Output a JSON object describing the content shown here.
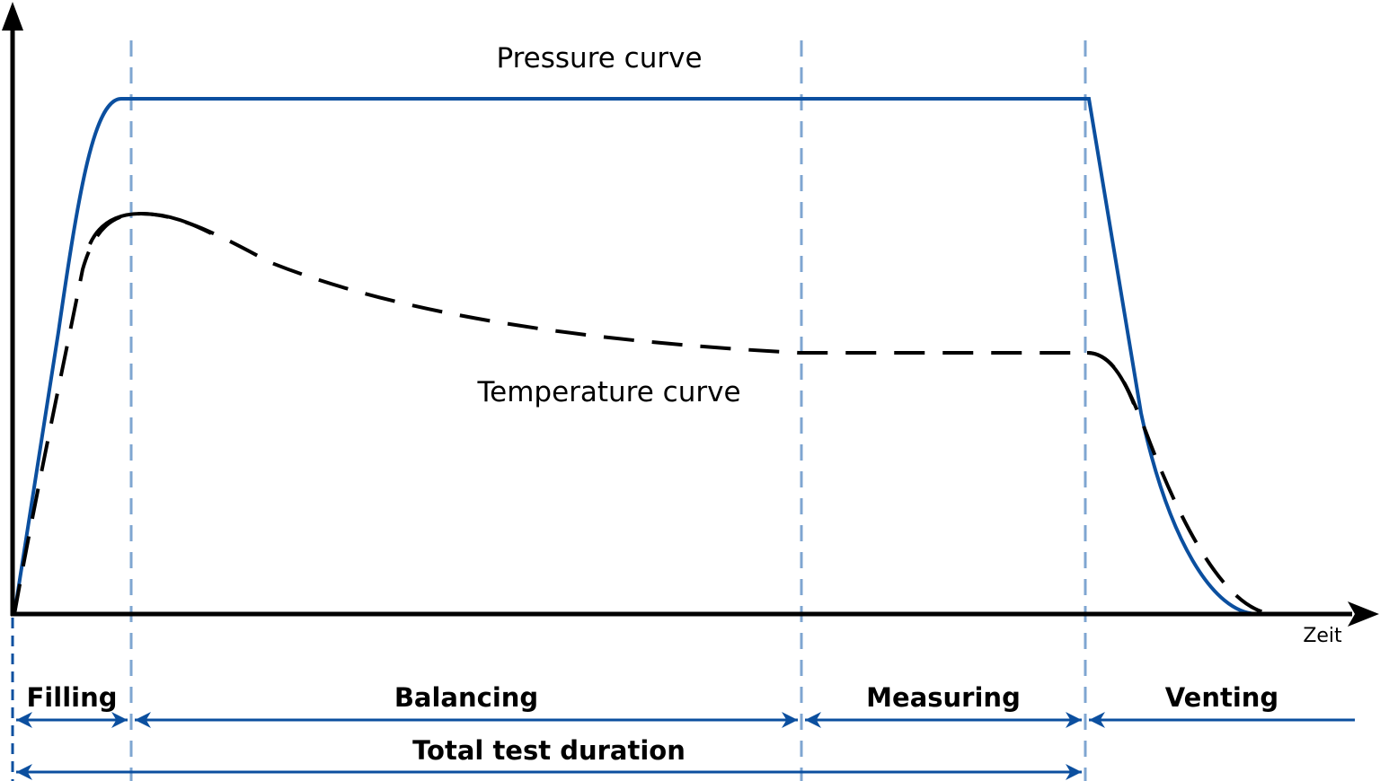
{
  "labels": {
    "pressure_curve": "Pressure curve",
    "temperature_curve": "Temperature curve",
    "x_axis": "Zeit"
  },
  "phases": [
    {
      "label": "Filling"
    },
    {
      "label": "Balancing"
    },
    {
      "label": "Measuring"
    },
    {
      "label": "Venting"
    }
  ],
  "total": {
    "label": "Total test duration"
  },
  "colors": {
    "pressure": "#0b4f9f",
    "temperature": "#000000",
    "phase_divider": "#7fa6d1",
    "dimension_arrow": "#0b4f9f"
  }
}
